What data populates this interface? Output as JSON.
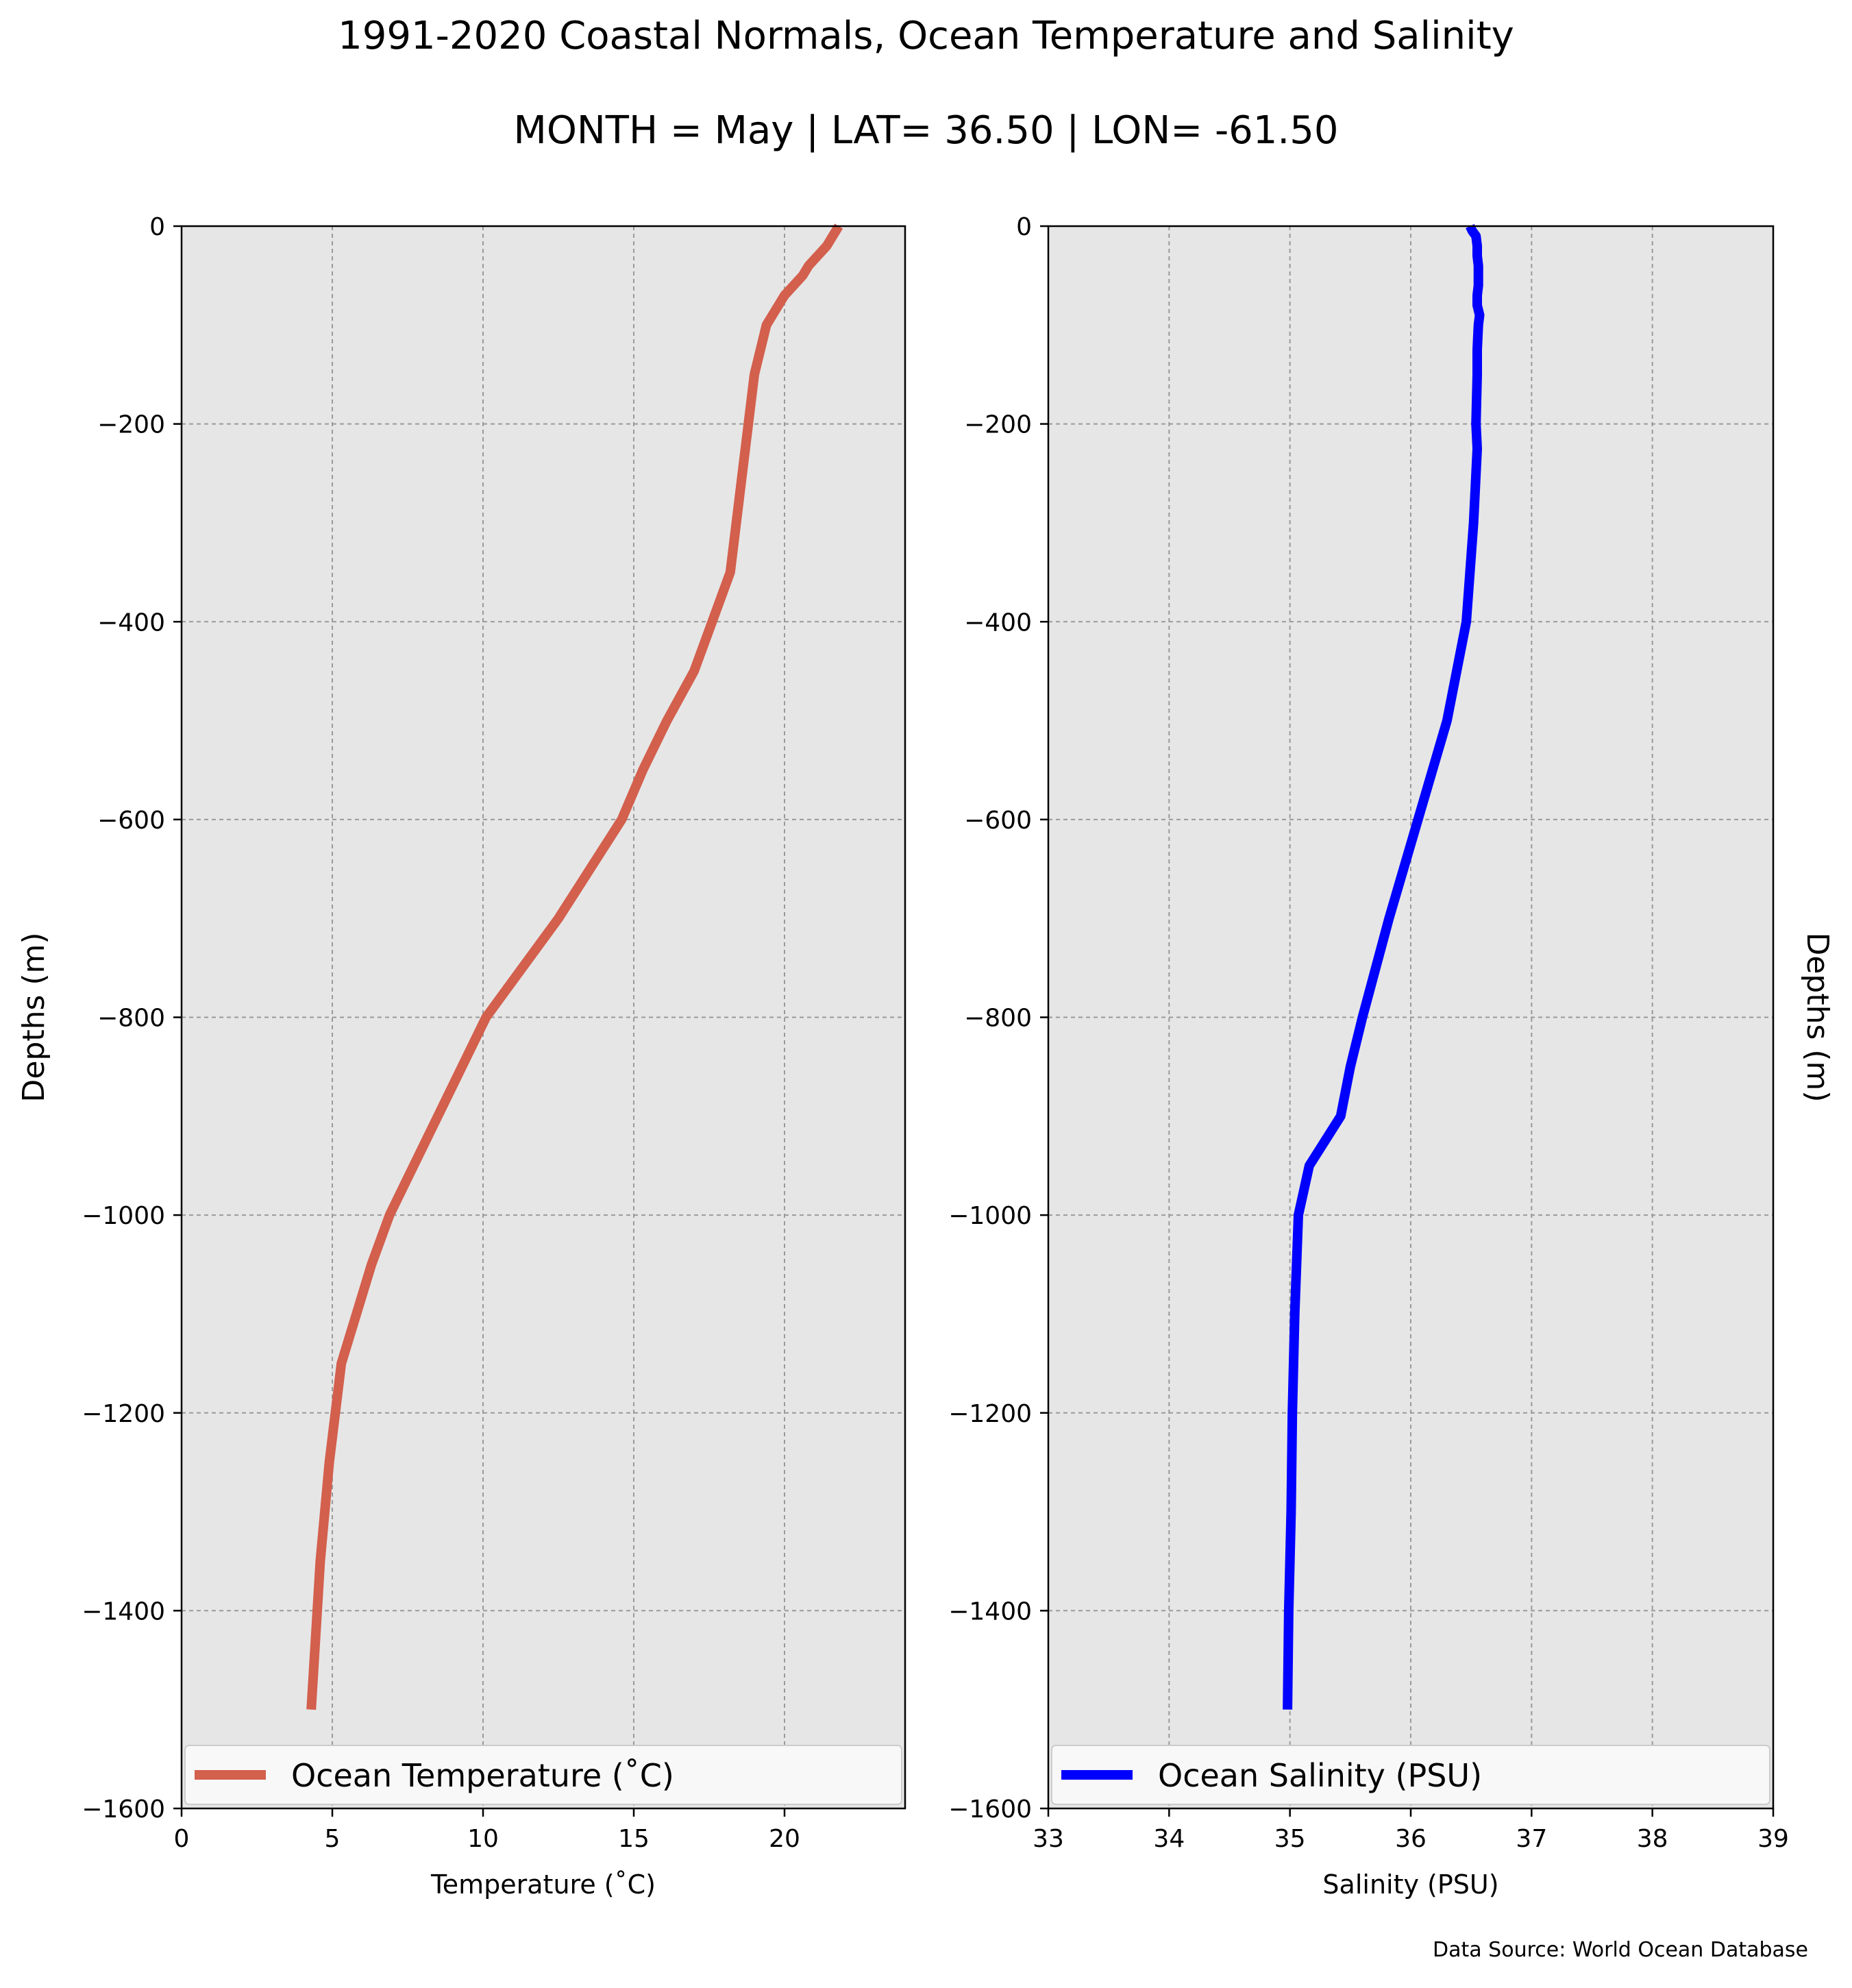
{
  "title": "1991-2020 Coastal Normals, Ocean Temperature and Salinity",
  "subtitle": "MONTH = May | LAT= 36.50 | LON= -61.50",
  "source_note": "Data Source: World Ocean Database",
  "colors": {
    "temperature_line": "#d35f4d",
    "salinity_line": "#0000ff",
    "plot_background": "#e6e6e6",
    "grid": "#9a9a9a"
  },
  "chart_data": [
    {
      "type": "line",
      "xlabel": "Temperature ($^\\circ$C)",
      "xlabel_display": "Temperature (˚C)",
      "ylabel": "Depths (m)",
      "ylabel_side": "left",
      "xlim": [
        0,
        24
      ],
      "ylim": [
        -1600,
        0
      ],
      "xticks": [
        0,
        5,
        10,
        15,
        20
      ],
      "yticks": [
        0,
        -200,
        -400,
        -600,
        -800,
        -1000,
        -1200,
        -1400,
        -1600
      ],
      "ytick_labels": [
        "0",
        "−200",
        "−400",
        "−600",
        "−800",
        "−1000",
        "−1200",
        "−1400",
        "−1600"
      ],
      "grid": true,
      "legend_position": "bottom",
      "series": [
        {
          "name": "Ocean Temperature (˚C)",
          "color": "#d35f4d",
          "points": [
            [
              21.8,
              0
            ],
            [
              21.7,
              -5
            ],
            [
              21.6,
              -10
            ],
            [
              21.4,
              -20
            ],
            [
              21.1,
              -30
            ],
            [
              20.8,
              -40
            ],
            [
              20.6,
              -50
            ],
            [
              20.3,
              -60
            ],
            [
              20.0,
              -70
            ],
            [
              19.8,
              -80
            ],
            [
              19.6,
              -90
            ],
            [
              19.4,
              -100
            ],
            [
              19.2,
              -125
            ],
            [
              19.0,
              -150
            ],
            [
              18.8,
              -200
            ],
            [
              18.5,
              -275
            ],
            [
              18.2,
              -350
            ],
            [
              17.6,
              -400
            ],
            [
              17.0,
              -450
            ],
            [
              16.1,
              -500
            ],
            [
              15.3,
              -550
            ],
            [
              14.6,
              -600
            ],
            [
              12.5,
              -700
            ],
            [
              10.1,
              -800
            ],
            [
              8.5,
              -900
            ],
            [
              6.9,
              -1000
            ],
            [
              6.3,
              -1050
            ],
            [
              5.3,
              -1150
            ],
            [
              4.9,
              -1250
            ],
            [
              4.6,
              -1350
            ],
            [
              4.3,
              -1500
            ]
          ]
        }
      ]
    },
    {
      "type": "line",
      "xlabel": "Salinity (PSU)",
      "ylabel": "Depths (m)",
      "ylabel_side": "right",
      "xlim": [
        33,
        39
      ],
      "ylim": [
        -1600,
        0
      ],
      "xticks": [
        33,
        34,
        35,
        36,
        37,
        38,
        39
      ],
      "yticks": [
        0,
        -200,
        -400,
        -600,
        -800,
        -1000,
        -1200,
        -1400,
        -1600
      ],
      "ytick_labels": [
        "0",
        "−200",
        "−400",
        "−600",
        "−800",
        "−1000",
        "−1200",
        "−1400",
        "−1600"
      ],
      "grid": true,
      "legend_position": "bottom",
      "series": [
        {
          "name": "Ocean Salinity (PSU)",
          "color": "#0000ff",
          "points": [
            [
              36.49,
              0
            ],
            [
              36.51,
              -5
            ],
            [
              36.54,
              -10
            ],
            [
              36.55,
              -20
            ],
            [
              36.55,
              -30
            ],
            [
              36.56,
              -40
            ],
            [
              36.56,
              -50
            ],
            [
              36.56,
              -60
            ],
            [
              36.55,
              -70
            ],
            [
              36.55,
              -80
            ],
            [
              36.57,
              -90
            ],
            [
              36.56,
              -100
            ],
            [
              36.55,
              -125
            ],
            [
              36.55,
              -150
            ],
            [
              36.54,
              -200
            ],
            [
              36.55,
              -225
            ],
            [
              36.52,
              -300
            ],
            [
              36.46,
              -400
            ],
            [
              36.3,
              -500
            ],
            [
              36.06,
              -600
            ],
            [
              35.82,
              -700
            ],
            [
              35.6,
              -800
            ],
            [
              35.5,
              -850
            ],
            [
              35.42,
              -900
            ],
            [
              35.16,
              -950
            ],
            [
              35.07,
              -1000
            ],
            [
              35.04,
              -1100
            ],
            [
              35.02,
              -1200
            ],
            [
              35.01,
              -1300
            ],
            [
              34.99,
              -1400
            ],
            [
              34.98,
              -1500
            ]
          ]
        }
      ]
    }
  ]
}
